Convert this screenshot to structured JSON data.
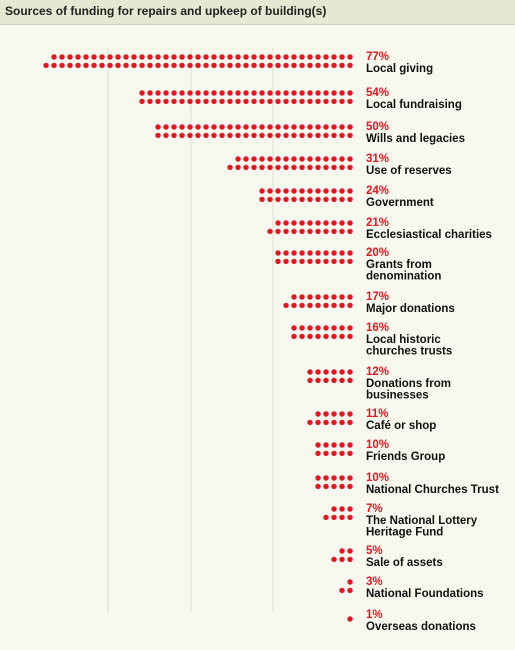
{
  "chart_data": {
    "type": "bar",
    "title": "Sources of funding for repairs and upkeep of building(s)",
    "unit": "%",
    "accent_color": "#e8141e",
    "grid": true,
    "categories": [
      "Local giving",
      "Local fundraising",
      "Wills and legacies",
      "Use of reserves",
      "Government",
      "Ecclesiastical charities",
      "Grants from denomination",
      "Major donations",
      "Local historic churches trusts",
      "Donations from businesses",
      "Café or shop",
      "Friends Group",
      "National Churches Trust",
      "The National Lottery Heritage Fund",
      "Sale of assets",
      "National Foundations",
      "Overseas donations"
    ],
    "values": [
      77,
      54,
      50,
      31,
      24,
      21,
      20,
      17,
      16,
      12,
      11,
      10,
      10,
      7,
      5,
      3,
      1
    ],
    "value_labels": [
      "77%",
      "54%",
      "50%",
      "31%",
      "24%",
      "21%",
      "20%",
      "17%",
      "16%",
      "12%",
      "11%",
      "10%",
      "10%",
      "7%",
      "5%",
      "3%",
      "1%"
    ],
    "label_lines": [
      [
        "Local giving"
      ],
      [
        "Local fundraising"
      ],
      [
        "Wills and legacies"
      ],
      [
        "Use of reserves"
      ],
      [
        "Government"
      ],
      [
        "Ecclesiastical charities"
      ],
      [
        "Grants from",
        "denomination"
      ],
      [
        "Major donations"
      ],
      [
        "Local historic",
        "churches trusts"
      ],
      [
        "Donations from",
        "businesses"
      ],
      [
        "Café or shop"
      ],
      [
        "Friends Group"
      ],
      [
        "National Churches Trust"
      ],
      [
        "The National Lottery",
        "Heritage Fund"
      ],
      [
        "Sale of assets"
      ],
      [
        "National Foundations"
      ],
      [
        "Overseas donations"
      ]
    ]
  }
}
